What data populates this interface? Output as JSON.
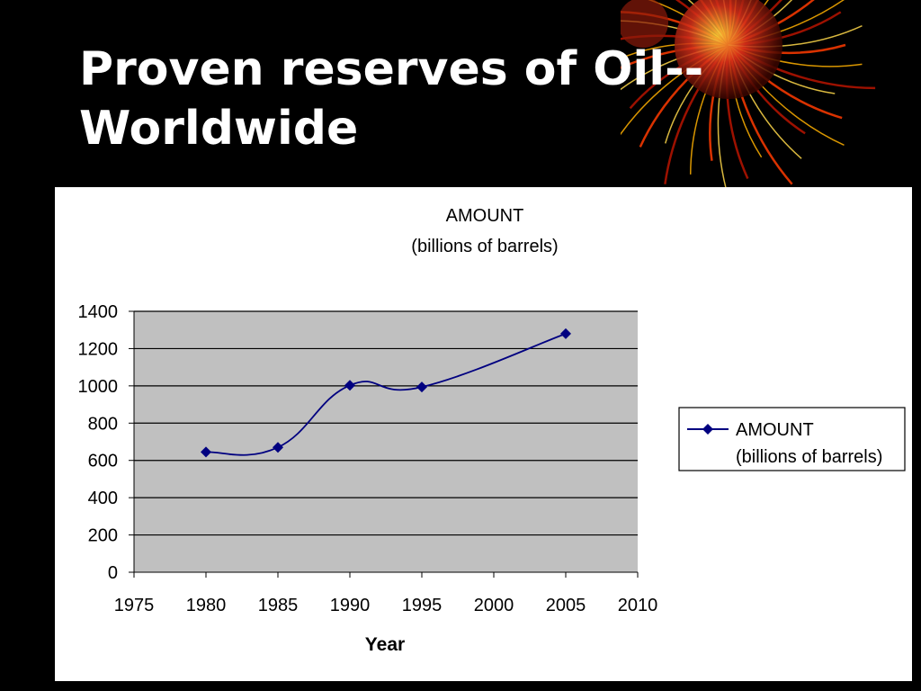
{
  "slide": {
    "title_line1": "Proven reserves of Oil--",
    "title_line2": "Worldwide"
  },
  "decoration": {
    "name": "fireworks-graphic",
    "colors": [
      "#ff3b00",
      "#ffb000",
      "#b81400",
      "#ffd84a"
    ]
  },
  "chart_data": {
    "type": "line",
    "title_line1": "AMOUNT",
    "title_line2": "(billions of barrels)",
    "xlabel": "Year",
    "ylabel": "",
    "xlim": [
      1975,
      2010
    ],
    "ylim": [
      0,
      1400
    ],
    "xticks": [
      1975,
      1980,
      1985,
      1990,
      1995,
      2000,
      2005,
      2010
    ],
    "yticks": [
      0,
      200,
      400,
      600,
      800,
      1000,
      1200,
      1400
    ],
    "grid": true,
    "plot_background": "#c0c0c0",
    "legend_position": "right",
    "series": [
      {
        "name_line1": "AMOUNT",
        "name_line2": "(billions of barrels)",
        "color": "#000080",
        "marker": "diamond",
        "smooth": true,
        "x": [
          1980,
          1985,
          1990,
          1995,
          2005
        ],
        "values": [
          645,
          670,
          1003,
          994,
          1280
        ]
      }
    ]
  }
}
